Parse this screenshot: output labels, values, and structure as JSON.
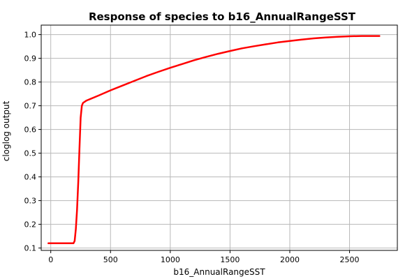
{
  "chart_data": {
    "type": "line",
    "title": "Response of species to b16_AnnualRangeSST",
    "xlabel": "b16_AnnualRangeSST",
    "ylabel": "cloglog output",
    "xlim": [
      -80,
      2900
    ],
    "ylim": [
      0.09,
      1.04
    ],
    "x_ticks": [
      0,
      500,
      1000,
      1500,
      2000,
      2500
    ],
    "y_ticks": [
      0.1,
      0.2,
      0.3,
      0.4,
      0.5,
      0.6,
      0.7,
      0.8,
      0.9,
      1.0
    ],
    "x_tick_labels": [
      "0",
      "500",
      "1000",
      "1500",
      "2000",
      "2500"
    ],
    "y_tick_labels": [
      "0.1",
      "0.2",
      "0.3",
      "0.4",
      "0.5",
      "0.6",
      "0.7",
      "0.8",
      "0.9",
      "1.0"
    ],
    "grid": true,
    "legend": "none",
    "series": [
      {
        "color": "#ff0000",
        "x": [
          -20,
          100,
          190,
          200,
          210,
          220,
          230,
          240,
          250,
          260,
          270,
          300,
          400,
          500,
          600,
          700,
          800,
          900,
          1000,
          1100,
          1200,
          1300,
          1400,
          1500,
          1600,
          1700,
          1800,
          1900,
          2000,
          2100,
          2200,
          2300,
          2400,
          2500,
          2600,
          2750
        ],
        "y": [
          0.12,
          0.12,
          0.12,
          0.13,
          0.18,
          0.26,
          0.38,
          0.52,
          0.65,
          0.7,
          0.712,
          0.722,
          0.743,
          0.765,
          0.785,
          0.805,
          0.825,
          0.843,
          0.86,
          0.876,
          0.892,
          0.906,
          0.919,
          0.931,
          0.942,
          0.951,
          0.959,
          0.967,
          0.973,
          0.979,
          0.984,
          0.988,
          0.991,
          0.993,
          0.994,
          0.994
        ]
      }
    ]
  }
}
